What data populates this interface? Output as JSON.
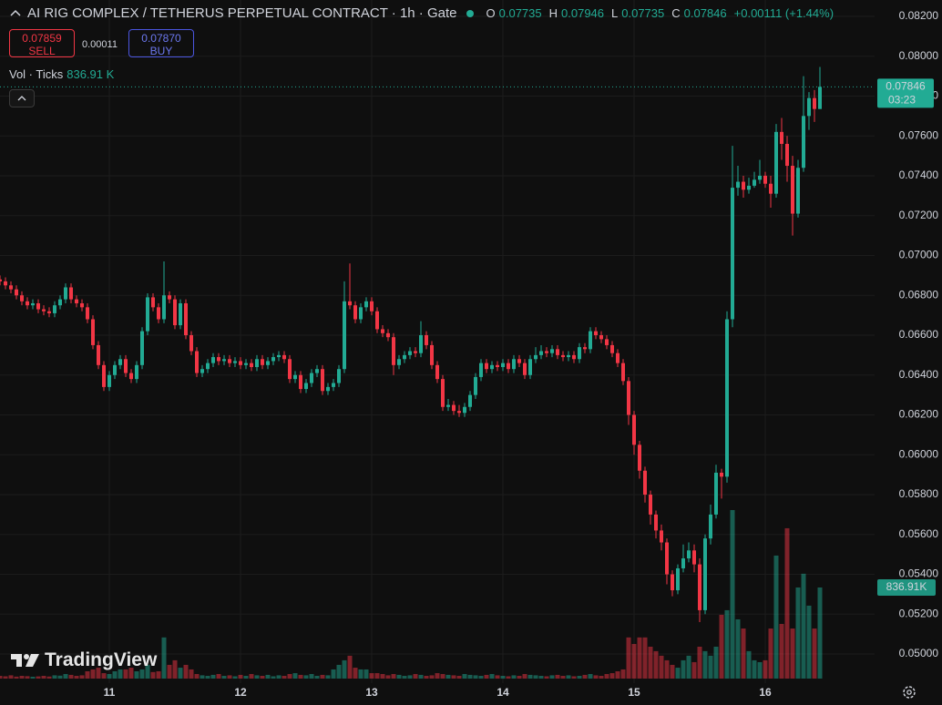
{
  "header": {
    "title": "AI RIG COMPLEX / TETHERUS PERPETUAL CONTRACT · 1h · Gate",
    "o": "O",
    "h": "H",
    "l": "L",
    "c": "C",
    "change": "+0.00111 (+1.44%)",
    "sell_price": "0.07859",
    "sell": "SELL",
    "spread": "0.00011",
    "buy_price": "0.07870",
    "buy": "BUY",
    "vol_title": "Vol · Ticks",
    "vol_value": "836.91 K",
    "watermark": "TradingView"
  },
  "chart_data": {
    "type": "candlestick",
    "categories": [
      null,
      null,
      null,
      null,
      null,
      null,
      null,
      null,
      null,
      null,
      null,
      null,
      null,
      null,
      null,
      null,
      null,
      null,
      null,
      null,
      "11",
      null,
      null,
      null,
      null,
      null,
      null,
      null,
      null,
      null,
      null,
      null,
      null,
      null,
      null,
      null,
      null,
      null,
      null,
      null,
      null,
      null,
      null,
      null,
      "12",
      null,
      null,
      null,
      null,
      null,
      null,
      null,
      null,
      null,
      null,
      null,
      null,
      null,
      null,
      null,
      null,
      null,
      null,
      null,
      null,
      null,
      null,
      null,
      "13",
      null,
      null,
      null,
      null,
      null,
      null,
      null,
      null,
      null,
      null,
      null,
      null,
      null,
      null,
      null,
      null,
      null,
      null,
      null,
      null,
      null,
      null,
      null,
      "14",
      null,
      null,
      null,
      null,
      null,
      null,
      null,
      null,
      null,
      null,
      null,
      null,
      null,
      null,
      null,
      null,
      null,
      null,
      null,
      null,
      null,
      null,
      null,
      "15",
      null,
      null,
      null,
      null,
      null,
      null,
      null,
      null,
      null,
      null,
      null,
      null,
      null,
      null,
      null,
      null,
      null,
      null,
      null,
      null,
      null,
      null,
      null,
      "16",
      null,
      null,
      null,
      null,
      null,
      null,
      null,
      null,
      null,
      null
    ],
    "open": [
      0.0688,
      0.0687,
      0.0685,
      0.0683,
      0.068,
      0.0677,
      0.0675,
      0.0676,
      0.0673,
      0.0672,
      0.0671,
      0.0675,
      0.0678,
      0.0684,
      0.0678,
      0.0676,
      0.0674,
      0.0668,
      0.0655,
      0.0645,
      0.0634,
      0.064,
      0.0645,
      0.0648,
      0.0641,
      0.0638,
      0.0645,
      0.0662,
      0.0679,
      0.0674,
      0.0668,
      0.068,
      0.0678,
      0.0665,
      0.0676,
      0.066,
      0.0652,
      0.0641,
      0.0643,
      0.0646,
      0.0649,
      0.0647,
      0.0648,
      0.0646,
      0.0647,
      0.0645,
      0.0646,
      0.0644,
      0.0648,
      0.0645,
      0.0647,
      0.0649,
      0.065,
      0.0648,
      0.0638,
      0.064,
      0.0633,
      0.0636,
      0.0641,
      0.0643,
      0.0632,
      0.0634,
      0.0636,
      0.0643,
      0.0677,
      0.0675,
      0.0668,
      0.0674,
      0.0677,
      0.0672,
      0.0663,
      0.0661,
      0.0659,
      0.0645,
      0.0648,
      0.065,
      0.0652,
      0.0651,
      0.066,
      0.0655,
      0.0645,
      0.0638,
      0.0624,
      0.0625,
      0.0622,
      0.0621,
      0.0624,
      0.063,
      0.0639,
      0.0646,
      0.0643,
      0.0645,
      0.0644,
      0.0646,
      0.0643,
      0.0648,
      0.0646,
      0.064,
      0.0648,
      0.065,
      0.0652,
      0.0651,
      0.0653,
      0.065,
      0.0649,
      0.065,
      0.0648,
      0.0654,
      0.0653,
      0.0662,
      0.066,
      0.0658,
      0.0655,
      0.0651,
      0.0646,
      0.0637,
      0.062,
      0.0605,
      0.0592,
      0.058,
      0.057,
      0.0562,
      0.0556,
      0.054,
      0.0532,
      0.0543,
      0.0548,
      0.0552,
      0.0545,
      0.0522,
      0.0558,
      0.057,
      0.0591,
      0.0589,
      0.0668,
      0.0734,
      0.0737,
      0.0733,
      0.0735,
      0.0738,
      0.074,
      0.0736,
      0.0731,
      0.0762,
      0.0756,
      0.0745,
      0.0721,
      0.0744,
      0.077,
      0.0779,
      0.07735
    ],
    "high": [
      0.069,
      0.0689,
      0.0687,
      0.0685,
      0.0682,
      0.0679,
      0.0678,
      0.0678,
      0.0675,
      0.0674,
      0.0677,
      0.068,
      0.0686,
      0.0686,
      0.068,
      0.0678,
      0.0676,
      0.067,
      0.0657,
      0.0647,
      0.0642,
      0.0647,
      0.065,
      0.065,
      0.0643,
      0.0647,
      0.0664,
      0.0681,
      0.0681,
      0.0676,
      0.0697,
      0.0682,
      0.068,
      0.0678,
      0.0678,
      0.0662,
      0.0654,
      0.0645,
      0.0648,
      0.0651,
      0.0651,
      0.065,
      0.065,
      0.0649,
      0.0649,
      0.0648,
      0.0648,
      0.065,
      0.065,
      0.0649,
      0.0651,
      0.0652,
      0.0652,
      0.065,
      0.0642,
      0.0642,
      0.0638,
      0.0643,
      0.0645,
      0.0645,
      0.0636,
      0.0638,
      0.0645,
      0.0687,
      0.0696,
      0.0677,
      0.0676,
      0.0679,
      0.0679,
      0.0674,
      0.0665,
      0.0663,
      0.0661,
      0.065,
      0.0652,
      0.0654,
      0.0654,
      0.0667,
      0.0662,
      0.0657,
      0.0647,
      0.064,
      0.0628,
      0.0627,
      0.0625,
      0.0626,
      0.0632,
      0.0641,
      0.0648,
      0.0648,
      0.0647,
      0.0647,
      0.0648,
      0.0648,
      0.065,
      0.065,
      0.0648,
      0.065,
      0.0654,
      0.0655,
      0.0654,
      0.0655,
      0.0655,
      0.0652,
      0.0652,
      0.0652,
      0.0656,
      0.0656,
      0.0664,
      0.0664,
      0.0662,
      0.066,
      0.0657,
      0.0653,
      0.0648,
      0.0639,
      0.0622,
      0.0607,
      0.0594,
      0.0582,
      0.0572,
      0.0565,
      0.0558,
      0.0542,
      0.0545,
      0.0555,
      0.0556,
      0.0555,
      0.0548,
      0.056,
      0.0575,
      0.0595,
      0.0593,
      0.0672,
      0.0755,
      0.0745,
      0.074,
      0.0739,
      0.0742,
      0.0748,
      0.0742,
      0.074,
      0.0766,
      0.0769,
      0.076,
      0.075,
      0.0748,
      0.079,
      0.0782,
      0.0783,
      0.07946
    ],
    "low": [
      0.0685,
      0.0683,
      0.0681,
      0.0678,
      0.0675,
      0.0673,
      0.0673,
      0.0671,
      0.067,
      0.0669,
      0.0669,
      0.0673,
      0.0676,
      0.0676,
      0.0674,
      0.0672,
      0.0666,
      0.0653,
      0.0643,
      0.0632,
      0.0632,
      0.0638,
      0.0643,
      0.0639,
      0.0636,
      0.0636,
      0.0643,
      0.066,
      0.0672,
      0.0666,
      0.0666,
      0.0676,
      0.0663,
      0.0663,
      0.0658,
      0.065,
      0.0639,
      0.0639,
      0.0641,
      0.0644,
      0.0645,
      0.0645,
      0.0644,
      0.0644,
      0.0643,
      0.0643,
      0.0642,
      0.0642,
      0.0643,
      0.0643,
      0.0645,
      0.0647,
      0.0646,
      0.0636,
      0.0636,
      0.0631,
      0.0631,
      0.0634,
      0.0639,
      0.063,
      0.063,
      0.0632,
      0.0634,
      0.0641,
      0.0673,
      0.0666,
      0.0666,
      0.0672,
      0.067,
      0.0661,
      0.0659,
      0.0657,
      0.064,
      0.0643,
      0.0646,
      0.0648,
      0.0649,
      0.0649,
      0.0653,
      0.0643,
      0.0636,
      0.0622,
      0.0622,
      0.062,
      0.0619,
      0.0619,
      0.0622,
      0.0628,
      0.0637,
      0.0641,
      0.0641,
      0.0642,
      0.0642,
      0.0641,
      0.0641,
      0.0644,
      0.0638,
      0.0638,
      0.0646,
      0.0648,
      0.0649,
      0.0649,
      0.0648,
      0.0647,
      0.0647,
      0.0646,
      0.0646,
      0.0651,
      0.0651,
      0.0658,
      0.0656,
      0.0653,
      0.0649,
      0.0644,
      0.0635,
      0.0615,
      0.06,
      0.0588,
      0.0576,
      0.0565,
      0.0558,
      0.0552,
      0.0535,
      0.0529,
      0.053,
      0.0541,
      0.0546,
      0.0541,
      0.0516,
      0.052,
      0.0555,
      0.0568,
      0.0578,
      0.0586,
      0.0664,
      0.073,
      0.0729,
      0.0731,
      0.0734,
      0.0736,
      0.0734,
      0.0724,
      0.0729,
      0.0748,
      0.0737,
      0.071,
      0.0719,
      0.0742,
      0.0763,
      0.0767,
      0.07735
    ],
    "close": [
      0.0687,
      0.0685,
      0.0683,
      0.068,
      0.0677,
      0.0675,
      0.0676,
      0.0673,
      0.0672,
      0.0671,
      0.0675,
      0.0678,
      0.0684,
      0.0678,
      0.0676,
      0.0674,
      0.0668,
      0.0655,
      0.0645,
      0.0634,
      0.064,
      0.0645,
      0.0648,
      0.0641,
      0.0638,
      0.0645,
      0.0662,
      0.0679,
      0.0674,
      0.0668,
      0.068,
      0.0678,
      0.0665,
      0.0676,
      0.066,
      0.0652,
      0.0641,
      0.0643,
      0.0646,
      0.0649,
      0.0647,
      0.0648,
      0.0646,
      0.0647,
      0.0645,
      0.0646,
      0.0644,
      0.0648,
      0.0645,
      0.0647,
      0.0649,
      0.065,
      0.0648,
      0.0638,
      0.064,
      0.0633,
      0.0636,
      0.0641,
      0.0643,
      0.0632,
      0.0634,
      0.0636,
      0.0643,
      0.0677,
      0.0675,
      0.0668,
      0.0674,
      0.0677,
      0.0672,
      0.0663,
      0.0661,
      0.0659,
      0.0645,
      0.0648,
      0.065,
      0.0652,
      0.0651,
      0.066,
      0.0655,
      0.0645,
      0.0638,
      0.0624,
      0.0625,
      0.0622,
      0.0621,
      0.0624,
      0.063,
      0.0639,
      0.0646,
      0.0643,
      0.0645,
      0.0644,
      0.0646,
      0.0643,
      0.0648,
      0.0646,
      0.064,
      0.0648,
      0.065,
      0.0652,
      0.0651,
      0.0653,
      0.065,
      0.0649,
      0.065,
      0.0648,
      0.0654,
      0.0653,
      0.0662,
      0.066,
      0.0658,
      0.0655,
      0.0651,
      0.0646,
      0.0637,
      0.062,
      0.0605,
      0.0592,
      0.058,
      0.057,
      0.0562,
      0.0556,
      0.054,
      0.0532,
      0.0543,
      0.0548,
      0.0552,
      0.0545,
      0.0522,
      0.0558,
      0.057,
      0.0591,
      0.0589,
      0.0668,
      0.0734,
      0.0737,
      0.0733,
      0.0735,
      0.0738,
      0.074,
      0.0736,
      0.0731,
      0.0762,
      0.0756,
      0.0745,
      0.0721,
      0.0744,
      0.077,
      0.0779,
      0.07735,
      0.07846
    ],
    "volume": [
      25000,
      21000,
      30000,
      18000,
      25000,
      22000,
      17000,
      20000,
      25000,
      19000,
      30000,
      27000,
      42000,
      34000,
      25000,
      30000,
      67000,
      84000,
      100000,
      50000,
      42000,
      67000,
      84000,
      84000,
      100000,
      67000,
      84000,
      126000,
      60000,
      67000,
      378000,
      126000,
      168000,
      100000,
      126000,
      84000,
      42000,
      30000,
      25000,
      34000,
      42000,
      25000,
      30000,
      21000,
      34000,
      25000,
      42000,
      30000,
      25000,
      34000,
      21000,
      30000,
      25000,
      42000,
      50000,
      34000,
      30000,
      42000,
      25000,
      34000,
      30000,
      84000,
      126000,
      168000,
      210000,
      100000,
      84000,
      84000,
      50000,
      50000,
      42000,
      30000,
      42000,
      34000,
      25000,
      30000,
      42000,
      34000,
      25000,
      30000,
      50000,
      42000,
      34000,
      30000,
      25000,
      42000,
      34000,
      30000,
      25000,
      34000,
      42000,
      30000,
      25000,
      21000,
      30000,
      25000,
      42000,
      34000,
      30000,
      25000,
      21000,
      30000,
      34000,
      25000,
      30000,
      21000,
      25000,
      34000,
      42000,
      30000,
      25000,
      42000,
      50000,
      67000,
      84000,
      378000,
      318000,
      378000,
      378000,
      293000,
      252000,
      210000,
      168000,
      126000,
      100000,
      168000,
      210000,
      151000,
      293000,
      252000,
      210000,
      293000,
      586000,
      628000,
      1548000,
      544000,
      460000,
      252000,
      168000,
      151000,
      168000,
      460000,
      1130000,
      502000,
      1381000,
      460000,
      837000,
      963000,
      670000,
      460000,
      836910
    ],
    "volume_last_label": "836.91K",
    "countdown": "03:23",
    "up_color": "#22ab94",
    "down_color": "#f23645",
    "ylim": [
      0.04854,
      0.08282
    ],
    "yticks": [
      {
        "value": 0.082,
        "label": "0.08200"
      },
      {
        "value": 0.08,
        "label": "0.08000"
      },
      {
        "value": 0.078,
        "label": "0.07800"
      },
      {
        "value": 0.076,
        "label": "0.07600"
      },
      {
        "value": 0.074,
        "label": "0.07400"
      },
      {
        "value": 0.072,
        "label": "0.07200"
      },
      {
        "value": 0.07,
        "label": "0.07000"
      },
      {
        "value": 0.068,
        "label": "0.06800"
      },
      {
        "value": 0.066,
        "label": "0.06600"
      },
      {
        "value": 0.064,
        "label": "0.06400"
      },
      {
        "value": 0.062,
        "label": "0.06200"
      },
      {
        "value": 0.06,
        "label": "0.06000"
      },
      {
        "value": 0.058,
        "label": "0.05800"
      },
      {
        "value": 0.056,
        "label": "0.05600"
      },
      {
        "value": 0.054,
        "label": "0.05400"
      },
      {
        "value": 0.052,
        "label": "0.05200"
      },
      {
        "value": 0.05,
        "label": "0.05000"
      }
    ],
    "grid": true
  }
}
